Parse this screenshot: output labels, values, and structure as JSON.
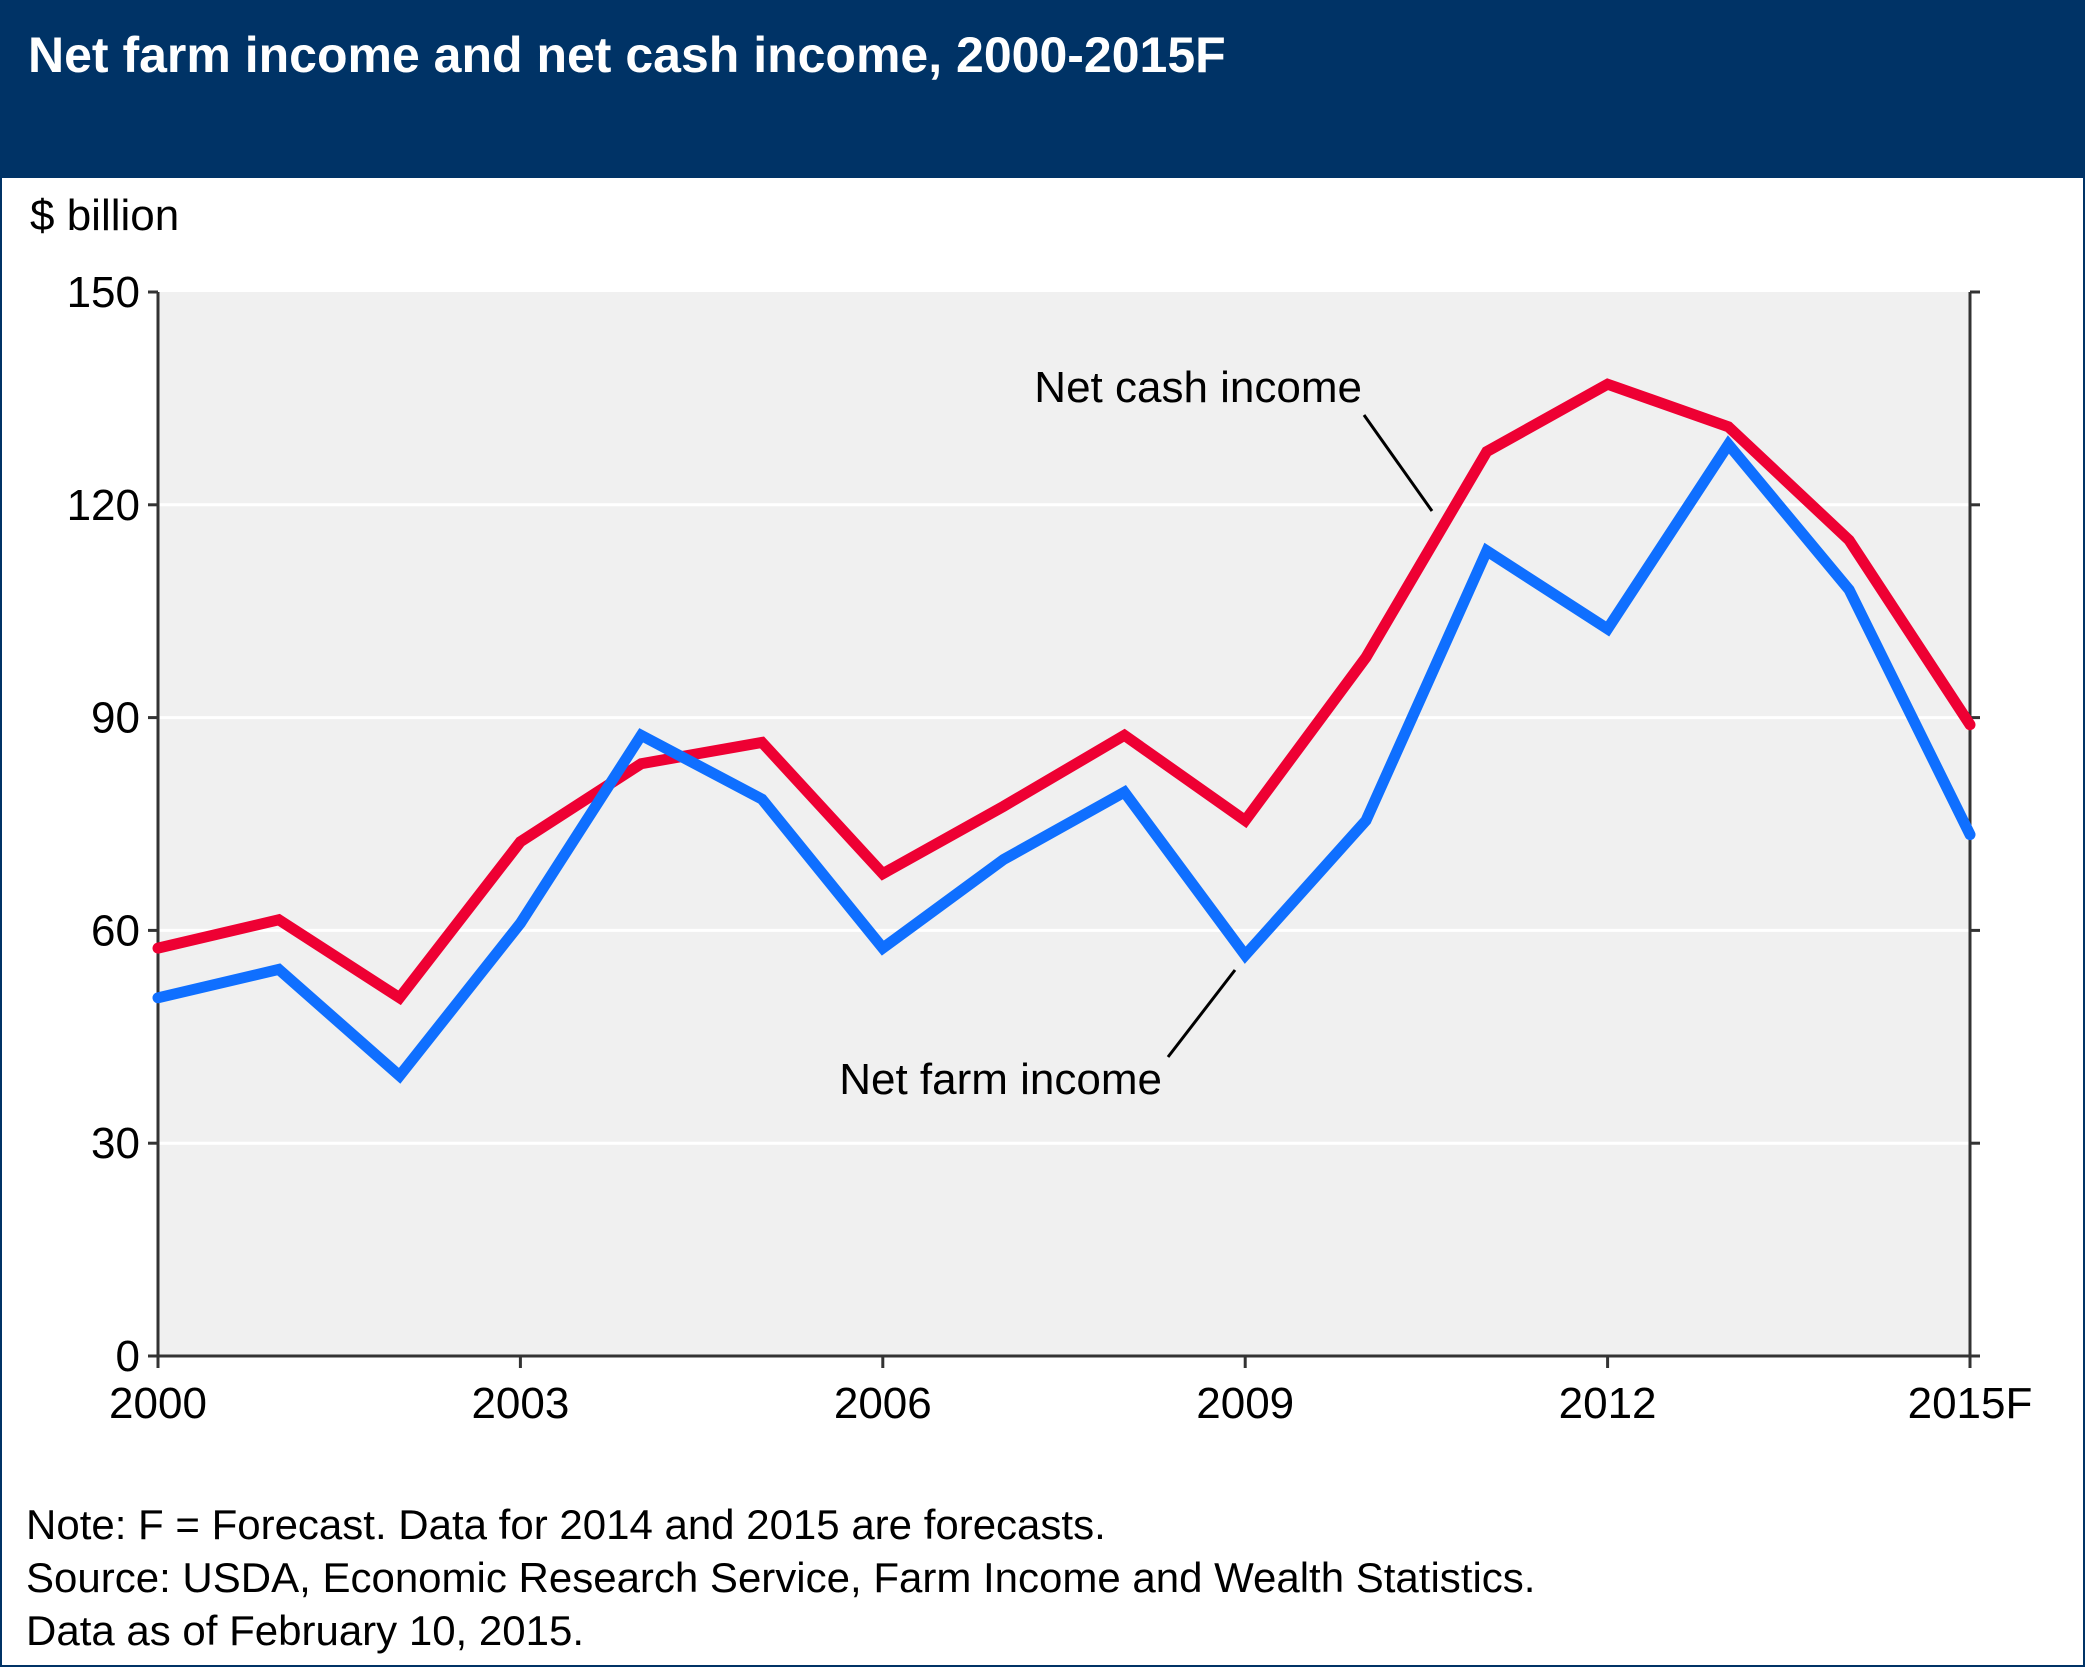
{
  "chart_data": {
    "type": "line",
    "title": "Net farm income and net cash income, 2000-2015F",
    "ylabel": "$ billion",
    "xlabel": "",
    "x": [
      2000,
      2001,
      2002,
      2003,
      2004,
      2005,
      2006,
      2007,
      2008,
      2009,
      2010,
      2011,
      2012,
      2013,
      2014,
      2015
    ],
    "x_tick_values": [
      2000,
      2003,
      2006,
      2009,
      2012,
      2015
    ],
    "x_tick_labels": [
      "2000",
      "2003",
      "2006",
      "2009",
      "2012",
      "2015F"
    ],
    "y_ticks": [
      0,
      30,
      60,
      90,
      120,
      150
    ],
    "ylim": [
      0,
      150
    ],
    "xlim": [
      2000,
      2015
    ],
    "grid": "horizontal",
    "series": [
      {
        "name": "Net cash income",
        "color": "#ee0033",
        "values": [
          57.5,
          61.5,
          50.5,
          72.5,
          83.5,
          86.5,
          68.0,
          77.5,
          87.5,
          75.5,
          98.5,
          127.5,
          137.0,
          131.0,
          115.0,
          89.0
        ]
      },
      {
        "name": "Net farm income",
        "color": "#0f6fff",
        "values": [
          50.5,
          54.5,
          39.5,
          61.0,
          87.5,
          78.5,
          57.5,
          70.0,
          79.5,
          56.5,
          75.5,
          113.5,
          102.5,
          128.5,
          108.0,
          73.5
        ]
      }
    ],
    "annotations": [
      "Net cash income",
      "Net farm income"
    ]
  },
  "notes": {
    "line1": "Note: F = Forecast. Data for 2014 and 2015 are forecasts.",
    "line2": "Source: USDA, Economic Research Service, Farm Income and Wealth Statistics.",
    "line3": "Data as of February 10, 2015."
  },
  "colors": {
    "header": "#003366",
    "plot_bg": "#f0f0f0",
    "gridline": "#ffffff"
  }
}
